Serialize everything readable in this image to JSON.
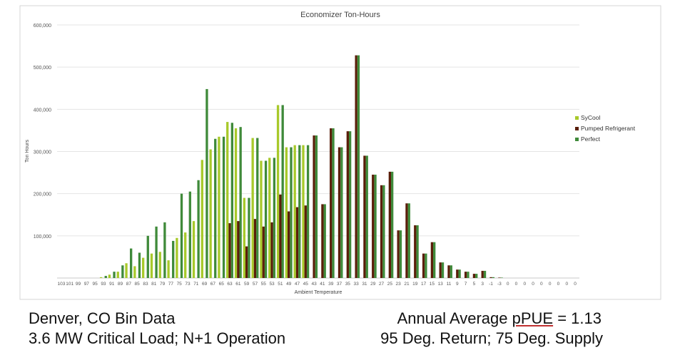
{
  "chart_data": {
    "type": "bar",
    "title": "Economizer Ton-Hours",
    "xlabel": "Ambient Temperature",
    "ylabel": "Ton Hours",
    "ylim": [
      0,
      600000
    ],
    "yticks": [
      "",
      "100,000",
      "200,000",
      "300,000",
      "400,000",
      "500,000",
      "600,000"
    ],
    "grid": true,
    "legend_position": "right",
    "categories": [
      "103",
      "101",
      "99",
      "97",
      "95",
      "93",
      "91",
      "89",
      "87",
      "85",
      "83",
      "81",
      "79",
      "77",
      "75",
      "73",
      "71",
      "69",
      "67",
      "65",
      "63",
      "61",
      "59",
      "57",
      "55",
      "53",
      "51",
      "49",
      "47",
      "45",
      "43",
      "41",
      "39",
      "37",
      "35",
      "33",
      "31",
      "29",
      "27",
      "25",
      "23",
      "21",
      "19",
      "17",
      "15",
      "13",
      "11",
      "9",
      "7",
      "5",
      "3",
      "-1",
      "-3",
      "0",
      "0",
      "0",
      "0",
      "0",
      "0",
      "0",
      "0",
      "0"
    ],
    "series": [
      {
        "name": "SyCool",
        "color": "#a8c92a",
        "values": [
          0,
          0,
          0,
          0,
          0,
          2000,
          8000,
          15000,
          35000,
          28000,
          48000,
          58000,
          62000,
          42000,
          95000,
          108000,
          135000,
          280000,
          305000,
          335000,
          370000,
          355000,
          190000,
          332000,
          278000,
          285000,
          410000,
          310000,
          315000,
          315000,
          0,
          0,
          0,
          0,
          0,
          0,
          0,
          0,
          0,
          0,
          0,
          0,
          0,
          0,
          0,
          0,
          0,
          0,
          0,
          0,
          0,
          0,
          0,
          0,
          0,
          0,
          0,
          0,
          0,
          0,
          0,
          0
        ]
      },
      {
        "name": "Pumped Refrigerant",
        "color": "#5a1e0a",
        "values": [
          0,
          0,
          0,
          0,
          0,
          0,
          0,
          0,
          0,
          0,
          0,
          0,
          0,
          0,
          0,
          0,
          0,
          0,
          0,
          0,
          130000,
          135000,
          75000,
          140000,
          122000,
          132000,
          198000,
          158000,
          168000,
          172000,
          338000,
          175000,
          355000,
          310000,
          348000,
          528000,
          290000,
          245000,
          220000,
          252000,
          113000,
          177000,
          125000,
          58000,
          85000,
          37000,
          30000,
          20000,
          15000,
          10000,
          17000,
          2000,
          1000,
          0,
          0,
          0,
          0,
          0,
          0,
          0,
          0,
          0
        ]
      },
      {
        "name": "Perfect",
        "color": "#3f8a3a",
        "values": [
          0,
          0,
          0,
          0,
          0,
          5000,
          15000,
          30000,
          70000,
          60000,
          100000,
          122000,
          132000,
          88000,
          200000,
          205000,
          232000,
          448000,
          330000,
          335000,
          368000,
          358000,
          190000,
          332000,
          278000,
          285000,
          410000,
          310000,
          315000,
          315000,
          338000,
          175000,
          355000,
          310000,
          348000,
          528000,
          290000,
          245000,
          220000,
          252000,
          113000,
          177000,
          125000,
          58000,
          85000,
          37000,
          30000,
          20000,
          15000,
          10000,
          17000,
          2000,
          1000,
          0,
          0,
          0,
          0,
          0,
          0,
          0,
          0,
          0
        ]
      }
    ]
  },
  "captions": {
    "left_line1": "Denver, CO Bin Data",
    "left_line2": "3.6 MW Critical Load; N+1 Operation",
    "right_line1_pre": "Annual Average ",
    "right_line1_ppue": "pPUE",
    "right_line1_post": " = 1.13",
    "right_line2": "95 Deg. Return; 75 Deg. Supply"
  }
}
